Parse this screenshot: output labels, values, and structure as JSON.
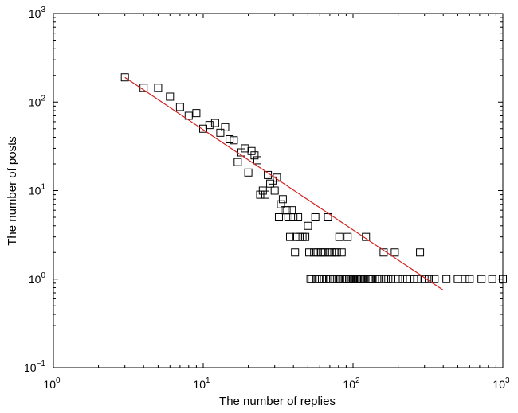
{
  "chart_data": {
    "type": "scatter",
    "title": "",
    "xlabel": "The number of replies",
    "ylabel": "The number of posts",
    "x_scale": "log",
    "y_scale": "log",
    "xlim": [
      1,
      1000
    ],
    "ylim": [
      0.1,
      1000
    ],
    "x_ticks": [
      {
        "value": 1,
        "base": "10",
        "exp": "0"
      },
      {
        "value": 10,
        "base": "10",
        "exp": "1"
      },
      {
        "value": 100,
        "base": "10",
        "exp": "2"
      },
      {
        "value": 1000,
        "base": "10",
        "exp": "3"
      }
    ],
    "y_ticks": [
      {
        "value": 0.1,
        "base": "10",
        "exp": "−1"
      },
      {
        "value": 1,
        "base": "10",
        "exp": "0"
      },
      {
        "value": 10,
        "base": "10",
        "exp": "1"
      },
      {
        "value": 100,
        "base": "10",
        "exp": "2"
      },
      {
        "value": 1000,
        "base": "10",
        "exp": "3"
      }
    ],
    "grid": false,
    "marker": "open-square",
    "marker_color": "#000000",
    "fit_line_color": "#d42020",
    "series": [
      {
        "points": [
          [
            3,
            190
          ],
          [
            4,
            145
          ],
          [
            5,
            145
          ],
          [
            6,
            115
          ],
          [
            7,
            88
          ],
          [
            8,
            70
          ],
          [
            9,
            75
          ],
          [
            10,
            50
          ],
          [
            11,
            55
          ],
          [
            12,
            58
          ],
          [
            13,
            45
          ],
          [
            14,
            52
          ],
          [
            15,
            38
          ],
          [
            16,
            37
          ],
          [
            17,
            21
          ],
          [
            18,
            27
          ],
          [
            19,
            30
          ],
          [
            20,
            16
          ],
          [
            21,
            28
          ],
          [
            22,
            25
          ],
          [
            23,
            22
          ],
          [
            24,
            9
          ],
          [
            25,
            10
          ],
          [
            26,
            9
          ],
          [
            27,
            15
          ],
          [
            28,
            12
          ],
          [
            29,
            13
          ],
          [
            30,
            10
          ],
          [
            31,
            14
          ],
          [
            32,
            5
          ],
          [
            33,
            7
          ],
          [
            34,
            8
          ],
          [
            35,
            6
          ],
          [
            36,
            6
          ],
          [
            37,
            5
          ],
          [
            38,
            3
          ],
          [
            39,
            6
          ],
          [
            40,
            5
          ],
          [
            41,
            2
          ],
          [
            42,
            3
          ],
          [
            43,
            5
          ],
          [
            44,
            3
          ],
          [
            46,
            3
          ],
          [
            48,
            3
          ],
          [
            50,
            4
          ],
          [
            51,
            2
          ],
          [
            52,
            1
          ],
          [
            53,
            1
          ],
          [
            55,
            2
          ],
          [
            56,
            5
          ],
          [
            57,
            1
          ],
          [
            58,
            2
          ],
          [
            60,
            1
          ],
          [
            61,
            2
          ],
          [
            62,
            1
          ],
          [
            63,
            2
          ],
          [
            64,
            1
          ],
          [
            65,
            2
          ],
          [
            66,
            1
          ],
          [
            68,
            5
          ],
          [
            69,
            2
          ],
          [
            70,
            1
          ],
          [
            72,
            2
          ],
          [
            74,
            1
          ],
          [
            75,
            2
          ],
          [
            76,
            1
          ],
          [
            78,
            2
          ],
          [
            80,
            1
          ],
          [
            81,
            3
          ],
          [
            82,
            1
          ],
          [
            84,
            2
          ],
          [
            86,
            1
          ],
          [
            88,
            1
          ],
          [
            90,
            1
          ],
          [
            92,
            3
          ],
          [
            94,
            1
          ],
          [
            96,
            1
          ],
          [
            98,
            1
          ],
          [
            100,
            1
          ],
          [
            102,
            1
          ],
          [
            104,
            1
          ],
          [
            106,
            1
          ],
          [
            108,
            1
          ],
          [
            110,
            1
          ],
          [
            113,
            1
          ],
          [
            116,
            1
          ],
          [
            119,
            1
          ],
          [
            122,
            3
          ],
          [
            125,
            1
          ],
          [
            128,
            1
          ],
          [
            131,
            1
          ],
          [
            135,
            1
          ],
          [
            140,
            1
          ],
          [
            145,
            1
          ],
          [
            150,
            1
          ],
          [
            160,
            2
          ],
          [
            165,
            1
          ],
          [
            172,
            1
          ],
          [
            180,
            1
          ],
          [
            190,
            2
          ],
          [
            200,
            1
          ],
          [
            215,
            1
          ],
          [
            230,
            1
          ],
          [
            240,
            1
          ],
          [
            255,
            1
          ],
          [
            270,
            1
          ],
          [
            280,
            2
          ],
          [
            300,
            1
          ],
          [
            320,
            1
          ],
          [
            350,
            1
          ],
          [
            420,
            1
          ],
          [
            500,
            1
          ],
          [
            560,
            1
          ],
          [
            600,
            1
          ],
          [
            720,
            1
          ],
          [
            850,
            1
          ],
          [
            1000,
            1
          ]
        ]
      }
    ],
    "fit_line": [
      [
        3,
        190
      ],
      [
        400,
        0.75
      ]
    ]
  }
}
